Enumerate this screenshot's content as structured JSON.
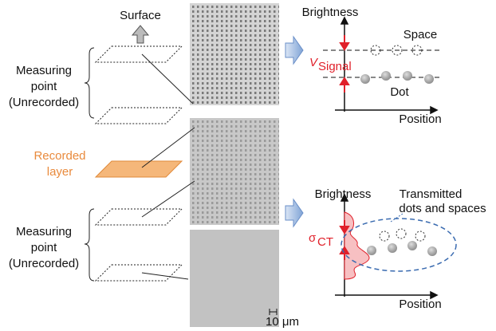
{
  "left_labels": {
    "surface": "Surface",
    "measuring_top": [
      "Measuring",
      "point",
      "(Unrecorded)"
    ],
    "recorded": [
      "Recorded",
      "layer"
    ],
    "measuring_bottom": [
      "Measuring",
      "point",
      "(Unrecorded)"
    ]
  },
  "top_plot": {
    "y_label": "Brightness",
    "x_label": "Position",
    "space": "Space",
    "dot": "Dot",
    "signal_symbol": "V",
    "signal_subscript": "Signal"
  },
  "bottom_plot": {
    "y_label": "Brightness",
    "x_label": "Position",
    "annotation": [
      "Transmitted",
      "dots and spaces"
    ],
    "symbol": "σ",
    "subscript": "CT"
  },
  "scale_bar": "10 μm"
}
